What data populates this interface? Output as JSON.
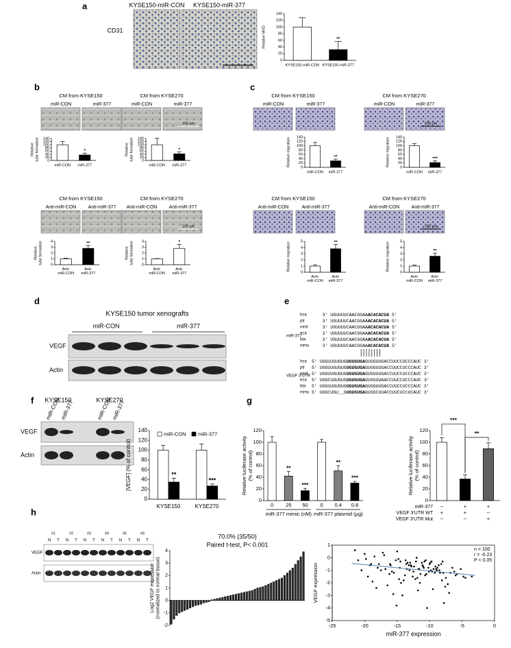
{
  "panel_labels": [
    "a",
    "b",
    "c",
    "d",
    "e",
    "f",
    "g",
    "h"
  ],
  "a": {
    "image_labels": [
      "KYSE150-miR-CON",
      "KYSE150-miR-377"
    ],
    "stain": "CD31"
  },
  "b": {
    "top_titles": [
      "CM from KYSE150",
      "CM from KYSE270"
    ],
    "top_image_labels": [
      "miR-CON",
      "miR-377"
    ],
    "bottom_titles": [
      "CM from KYSE150",
      "CM from KYSE270"
    ],
    "bottom_image_labels": [
      "Anti-miR-CON",
      "Anti-miR-377"
    ],
    "scale_bar": "100 μm"
  },
  "c": {
    "top_titles": [
      "CM from KYSE150",
      "CM from KYSE270"
    ],
    "top_image_labels": [
      "miR-CON",
      "miR-377"
    ],
    "bottom_titles": [
      "CM from KYSE150",
      "CM from KYSE270"
    ],
    "bottom_image_labels": [
      "Anti-miR-CON",
      "Anti-miR-377"
    ],
    "scale_bar": "100 μm"
  },
  "d": {
    "title": "KYSE150 tumor xenografts",
    "groups": [
      "miR-CON",
      "miR-377"
    ],
    "rows": [
      "VEGF",
      "Actin"
    ]
  },
  "e": {
    "mir_label": "miR-377",
    "utr_label": "VEGF 3'UTR",
    "species": [
      "hsa",
      "ptr",
      "mml",
      "eca",
      "bta",
      "mmu"
    ],
    "mir_lines": [
      [
        "3'  UGUUUUCAACGGAA",
        "ACACACUA",
        "  5'"
      ],
      [
        "3'  UGUUUUCAACGGAA",
        "ACACACUA",
        "  5'"
      ],
      [
        "3'  UGUUUUCAACGGAA",
        "ACACACUA",
        "  5'"
      ],
      [
        "3'  UGUUUUCAACGGAA",
        "ACACACUA",
        "  5'"
      ],
      [
        "3'  UGUUUUCAACGGAA",
        "ACACACUA",
        "  5'"
      ],
      [
        "3'  UGUUUUCAACGGAA",
        "ACACACUA",
        "  5'"
      ]
    ],
    "utr_lines": [
      [
        "5'  UGGUUGUGUG",
        "UGUGUGA",
        "GUGGUUGACCUUCCUCCCAUC  3'"
      ],
      [
        "5'  UGGUUGUGUG",
        "UGUGUGA",
        "GUGGUUGACCUUCCUCCCAUC  3'"
      ],
      [
        "5'  UGGUUGUGUG",
        "UGUGUGA",
        "GUGGUUGACCUUCCUCCCAUC  3'"
      ],
      [
        "5'  UGGCUGUGUG",
        "UGUGUGA",
        "GUGGUUAACCUUCCUCCCAUC  3'"
      ],
      [
        "5'  UGGUUGUGUG",
        "UGUGUGA",
        "GUGGUUGACCUUCCUCCCAUC  3'"
      ],
      [
        "5'  UGGCUGU__G",
        "UGUGUGA",
        "GUGGCUUACCUUCUCCUCAUC  3'"
      ]
    ]
  },
  "f_blot": {
    "cells": [
      "KYSE150",
      "KYSE270"
    ],
    "lanes": [
      "miR-CON",
      "miR-377",
      "miR-CON",
      "miR-377"
    ],
    "rows": [
      "VEGF",
      "Actin"
    ]
  },
  "h_blot": {
    "samples": [
      "#1",
      "#2",
      "#3",
      "#4",
      "#5",
      "#6"
    ],
    "lanes": [
      "N",
      "T"
    ],
    "rows": [
      "VEGF",
      "Actin"
    ]
  },
  "chart_data": [
    {
      "type": "bar",
      "ylabel": [
        "Relative MVD"
      ],
      "categories": [
        "KYSE150-miR-CON",
        "KYSE150-miR-377"
      ],
      "values": [
        100,
        32
      ],
      "errors": [
        28,
        25
      ],
      "colors": [
        "#ffffff",
        "#000000"
      ],
      "significance": [
        null,
        "**"
      ],
      "ylim": [
        0,
        140
      ],
      "yticks": [
        0,
        20,
        40,
        60,
        80,
        100,
        120,
        140
      ]
    },
    {
      "type": "bar",
      "ylabel": [
        "Relative",
        "tube formation"
      ],
      "categories": [
        "miR-CON",
        "miR-377"
      ],
      "values": [
        100,
        35
      ],
      "errors": [
        20,
        12
      ],
      "colors": [
        "#ffffff",
        "#000000"
      ],
      "significance": [
        null,
        "*"
      ],
      "ylim": [
        0,
        140
      ],
      "yticks": [
        0,
        20,
        40,
        60,
        80,
        100,
        120,
        140
      ]
    },
    {
      "type": "bar",
      "ylabel": [
        "Relative",
        "tube formation"
      ],
      "categories": [
        "miR-CON",
        "miR-377"
      ],
      "values": [
        100,
        42
      ],
      "errors": [
        42,
        12
      ],
      "colors": [
        "#ffffff",
        "#000000"
      ],
      "significance": [
        null,
        "*"
      ],
      "ylim": [
        0,
        140
      ],
      "yticks": [
        0,
        20,
        40,
        60,
        80,
        100,
        120,
        140
      ]
    },
    {
      "type": "bar",
      "ylabel": [
        "Relative",
        "tube formation"
      ],
      "categories": [
        "Anti-miR-CON",
        "Anti-miR-377"
      ],
      "values": [
        1,
        2.8
      ],
      "errors": [
        0.1,
        0.5
      ],
      "colors": [
        "#ffffff",
        "#000000"
      ],
      "significance": [
        null,
        "**"
      ],
      "ylim": [
        0,
        4
      ],
      "yticks": [
        0,
        1,
        2,
        3,
        4
      ]
    },
    {
      "type": "bar",
      "ylabel": [
        "Relative",
        "tube formation"
      ],
      "categories": [
        "Anti-miR-CON",
        "Anti-miR-377"
      ],
      "values": [
        1,
        2.8
      ],
      "errors": [
        0.05,
        0.7
      ],
      "colors": [
        "#ffffff",
        "#ffffff"
      ],
      "significance": [
        null,
        "*"
      ],
      "ylim": [
        0,
        4
      ],
      "yticks": [
        0,
        1,
        2,
        3,
        4
      ]
    },
    {
      "type": "bar",
      "ylabel": [
        "Relative migration"
      ],
      "categories": [
        "miR-CON",
        "miR-377"
      ],
      "values": [
        100,
        30
      ],
      "errors": [
        15,
        8
      ],
      "colors": [
        "#ffffff",
        "#000000"
      ],
      "significance": [
        null,
        "**"
      ],
      "ylim": [
        0,
        140
      ],
      "yticks": [
        0,
        20,
        40,
        60,
        80,
        100,
        120,
        140
      ]
    },
    {
      "type": "bar",
      "ylabel": [
        "Relative migration"
      ],
      "categories": [
        "miR-CON",
        "miR-377"
      ],
      "values": [
        100,
        22
      ],
      "errors": [
        10,
        8
      ],
      "colors": [
        "#ffffff",
        "#000000"
      ],
      "significance": [
        null,
        "***"
      ],
      "ylim": [
        0,
        140
      ],
      "yticks": [
        0,
        20,
        40,
        60,
        80,
        100,
        120,
        140
      ]
    },
    {
      "type": "bar",
      "ylabel": [
        "Relative migration"
      ],
      "categories": [
        "Anti-miR-CON",
        "Anti-miR-377"
      ],
      "values": [
        1,
        3.8
      ],
      "errors": [
        0.2,
        0.7
      ],
      "colors": [
        "#ffffff",
        "#000000"
      ],
      "significance": [
        null,
        "**"
      ],
      "ylim": [
        0,
        5
      ],
      "yticks": [
        0,
        1,
        2,
        3,
        4,
        5
      ]
    },
    {
      "type": "bar",
      "ylabel": [
        "Relative migration"
      ],
      "categories": [
        "Anti-miR-CON",
        "Anti-miR-377"
      ],
      "values": [
        1,
        2.6
      ],
      "errors": [
        0.15,
        0.5
      ],
      "colors": [
        "#ffffff",
        "#000000"
      ],
      "significance": [
        null,
        "**"
      ],
      "ylim": [
        0,
        5
      ],
      "yticks": [
        0,
        1,
        2,
        3,
        4,
        5
      ]
    },
    {
      "type": "bar",
      "ylabel": [
        "[VEGF] (% of control)"
      ],
      "categories": [
        "KYSE150",
        "KYSE270"
      ],
      "series": [
        {
          "name": "miR-CON",
          "color": "#ffffff",
          "values": [
            100,
            100
          ],
          "errors": [
            10,
            13
          ],
          "significance": [
            null,
            null
          ]
        },
        {
          "name": "miR-377",
          "color": "#000000",
          "values": [
            35,
            27
          ],
          "errors": [
            8,
            4
          ],
          "significance": [
            "**",
            "***"
          ]
        }
      ],
      "ylim": [
        0,
        140
      ],
      "yticks": [
        0,
        20,
        40,
        60,
        80,
        100,
        120,
        140
      ]
    },
    {
      "type": "bar",
      "ylabel": [
        "Relative luciferase activity",
        "(% of control)"
      ],
      "categories": [
        "0",
        "25",
        "50",
        "0",
        "0.4",
        "0.8"
      ],
      "group_labels": [
        "miR-377 mimic (nM)",
        "miR-377 plasmid (μg)"
      ],
      "values": [
        100,
        42,
        17,
        100,
        51,
        30
      ],
      "errors": [
        10,
        8,
        4,
        5,
        9,
        3
      ],
      "colors": [
        "#ffffff",
        "#808080",
        "#000000",
        "#ffffff",
        "#808080",
        "#000000"
      ],
      "significance": [
        null,
        "**",
        "***",
        null,
        "**",
        "***"
      ],
      "ylim": [
        0,
        120
      ],
      "yticks": [
        0,
        20,
        40,
        60,
        80,
        100,
        120
      ]
    },
    {
      "type": "bar",
      "ylabel": [
        "Relative luciferase activity",
        "(% of control)"
      ],
      "values": [
        100,
        37,
        89
      ],
      "errors": [
        8,
        7,
        10
      ],
      "colors": [
        "#ffffff",
        "#000000",
        "#606060"
      ],
      "comparisons": [
        "***",
        "**"
      ],
      "conditions": [
        {
          "name": "miR-377",
          "values": [
            "--",
            "+",
            "+"
          ]
        },
        {
          "name": "VEGF 3'UTR WT",
          "values": [
            "+",
            "+",
            "--"
          ]
        },
        {
          "name": "VEGF 3'UTR Mut",
          "values": [
            "--",
            "--",
            "+"
          ]
        }
      ],
      "ylim": [
        0,
        120
      ],
      "yticks": [
        0,
        20,
        40,
        60,
        80,
        100,
        120
      ]
    },
    {
      "type": "bar",
      "title": "70.0% (35/50)",
      "subtitle": "Paired t-test, P< 0.001",
      "ylabel": [
        "Log2 VEGF expression",
        "(normalized to normal tissue)"
      ],
      "color": "#333333",
      "values": [
        -1.9,
        -1.5,
        -1.2,
        -1.0,
        -0.9,
        -0.8,
        -0.7,
        -0.6,
        -0.5,
        -0.4,
        -0.35,
        -0.3,
        -0.2,
        -0.15,
        -0.1,
        0.05,
        0.1,
        0.15,
        0.2,
        0.25,
        0.3,
        0.35,
        0.4,
        0.45,
        0.5,
        0.55,
        0.6,
        0.65,
        0.7,
        0.75,
        0.8,
        0.9,
        1.0,
        1.05,
        1.1,
        1.2,
        1.3,
        1.4,
        1.5,
        1.6,
        1.7,
        1.8,
        2.0,
        2.2,
        2.4,
        2.6,
        2.9,
        3.2,
        3.5,
        3.9
      ],
      "ylim": [
        -2,
        4
      ],
      "yticks": [
        -2,
        -1,
        0,
        1,
        2,
        3,
        4
      ]
    },
    {
      "type": "scatter",
      "xlabel": "miR-377 expression",
      "ylabel": [
        "VEGF expression"
      ],
      "annotations": [
        "n = 100",
        "r = -0.23",
        "P < 0.05"
      ],
      "color": "#000000",
      "x": [
        -21,
        -20,
        -19.5,
        -19,
        -18.5,
        -18,
        -17.5,
        -17,
        -16.5,
        -16,
        -15.5,
        -15,
        -14.5,
        -14,
        -13.5,
        -13,
        -12.5,
        -12,
        -11.5,
        -11,
        -10.5,
        -10,
        -9.5,
        -9,
        -8.5,
        -8,
        -7.5,
        -7,
        -6.5,
        -6,
        -20.5,
        -19.2,
        -18.2,
        -17.2,
        -16.2,
        -15.2,
        -14.2,
        -13.2,
        -12.2,
        -11.2,
        -10.2,
        -9.2,
        -8.2,
        -7.2,
        -6.2,
        -5.2,
        -4.5,
        -3.5,
        -21.5,
        -18.8,
        -16.8,
        -15.8,
        -14.8,
        -13.8,
        -12.8,
        -11.8,
        -10.8,
        -9.8,
        -8.8,
        -7.8,
        -6.8,
        -5.8,
        -17.8,
        -15.6,
        -14.6,
        -13.6,
        -12.6,
        -11.6,
        -10.6,
        -9.6,
        -8.6,
        -7.6,
        -12.4,
        -11.4,
        -10.4,
        -9.4,
        -8.4,
        -13.4,
        -14.4,
        -11.1,
        -10.1,
        -9.1,
        -8.1,
        -12.1,
        -13.1,
        -15.1,
        -16.1,
        -10.9,
        -9.9,
        -11.9,
        -12.9,
        -8.9,
        -7.9,
        -10.7,
        -9.7,
        -11.7,
        -13.7,
        -14.7,
        -19.8,
        -4.8
      ],
      "y": [
        -0.2,
        0.3,
        -1.5,
        -0.5,
        0.1,
        -0.8,
        -1.0,
        0.2,
        -2.2,
        -0.6,
        -1.2,
        0.5,
        -0.3,
        -1.8,
        -0.9,
        -0.4,
        -1.1,
        0.0,
        -2.0,
        -0.7,
        -1.3,
        -0.5,
        -2.5,
        -0.9,
        -1.0,
        -0.3,
        -1.6,
        -2.8,
        -0.8,
        -1.4,
        -1.0,
        -0.6,
        -2.4,
        0.4,
        -1.3,
        -0.2,
        -3.0,
        -0.6,
        -1.7,
        -0.4,
        -0.8,
        -1.2,
        -0.5,
        -2.1,
        -1.1,
        -0.9,
        -1.6,
        -1.5,
        0.6,
        -1.9,
        -0.9,
        -1.1,
        -0.1,
        -1.4,
        -0.7,
        -2.6,
        -0.3,
        -1.0,
        -0.8,
        -3.6,
        -1.2,
        -1.3,
        -0.5,
        -2.9,
        -0.8,
        -0.5,
        -1.5,
        -0.9,
        -0.2,
        -1.1,
        -0.6,
        -2.3,
        -0.7,
        -1.3,
        -4.0,
        -0.9,
        -1.2,
        -0.4,
        -2.0,
        -0.6,
        -1.1,
        -0.7,
        -1.8,
        -0.3,
        -1.0,
        -3.8,
        -0.5,
        -0.8,
        -0.4,
        -1.6,
        -0.6,
        -1.0,
        -1.2,
        -1.4,
        -0.3,
        -0.9,
        -0.2,
        -1.7,
        -0.1,
        -1.5
      ],
      "trendline": {
        "x": [
          -22,
          -3
        ],
        "y": [
          -0.45,
          -1.4
        ],
        "color": "#4a7fb5"
      },
      "xlim": [
        -25,
        0
      ],
      "xticks": [
        -25,
        -20,
        -15,
        -10,
        -5,
        0
      ],
      "ylim": [
        -5,
        1
      ],
      "yticks": [
        -5,
        -4,
        -3,
        -2,
        -1,
        0,
        1
      ]
    }
  ]
}
